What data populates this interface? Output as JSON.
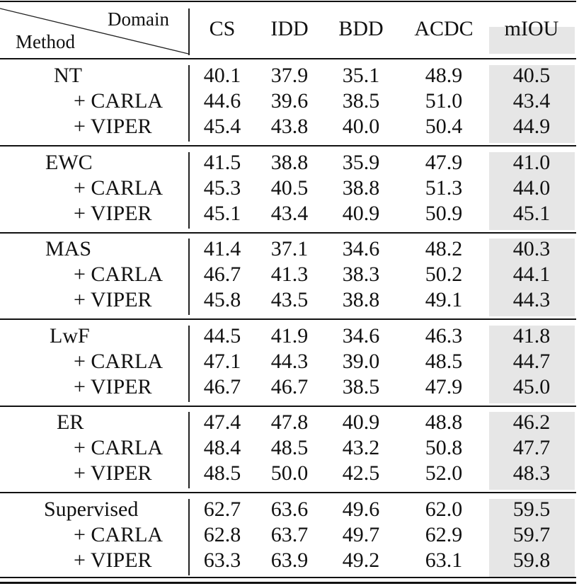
{
  "table": {
    "header": {
      "corner_top": "Domain",
      "corner_bottom": "Method",
      "columns": [
        "CS",
        "IDD",
        "BDD",
        "ACDC",
        "mIOU"
      ]
    },
    "highlight_color": "#e6e6e6",
    "groups": [
      {
        "method": "NT",
        "rows": [
          {
            "label": "NT",
            "values": [
              "40.1",
              "37.9",
              "35.1",
              "48.9",
              "40.5"
            ]
          },
          {
            "label": "+ CARLA",
            "values": [
              "44.6",
              "39.6",
              "38.5",
              "51.0",
              "43.4"
            ]
          },
          {
            "label": "+ VIPER",
            "values": [
              "45.4",
              "43.8",
              "40.0",
              "50.4",
              "44.9"
            ]
          }
        ]
      },
      {
        "method": "EWC",
        "rows": [
          {
            "label": "EWC",
            "values": [
              "41.5",
              "38.8",
              "35.9",
              "47.9",
              "41.0"
            ]
          },
          {
            "label": "+ CARLA",
            "values": [
              "45.3",
              "40.5",
              "38.8",
              "51.3",
              "44.0"
            ]
          },
          {
            "label": "+ VIPER",
            "values": [
              "45.1",
              "43.4",
              "40.9",
              "50.9",
              "45.1"
            ]
          }
        ]
      },
      {
        "method": "MAS",
        "rows": [
          {
            "label": "MAS",
            "values": [
              "41.4",
              "37.1",
              "34.6",
              "48.2",
              "40.3"
            ]
          },
          {
            "label": "+ CARLA",
            "values": [
              "46.7",
              "41.3",
              "38.3",
              "50.2",
              "44.1"
            ]
          },
          {
            "label": "+ VIPER",
            "values": [
              "45.8",
              "43.5",
              "38.8",
              "49.1",
              "44.3"
            ]
          }
        ]
      },
      {
        "method": "LwF",
        "rows": [
          {
            "label": "LwF",
            "values": [
              "44.5",
              "41.9",
              "34.6",
              "46.3",
              "41.8"
            ]
          },
          {
            "label": "+ CARLA",
            "values": [
              "47.1",
              "44.3",
              "39.0",
              "48.5",
              "44.7"
            ]
          },
          {
            "label": "+ VIPER",
            "values": [
              "46.7",
              "46.7",
              "38.5",
              "47.9",
              "45.0"
            ]
          }
        ]
      },
      {
        "method": "ER",
        "rows": [
          {
            "label": "ER",
            "values": [
              "47.4",
              "47.8",
              "40.9",
              "48.8",
              "46.2"
            ]
          },
          {
            "label": "+ CARLA",
            "values": [
              "48.4",
              "48.5",
              "43.2",
              "50.8",
              "47.7"
            ]
          },
          {
            "label": "+ VIPER",
            "values": [
              "48.5",
              "50.0",
              "42.5",
              "52.0",
              "48.3"
            ]
          }
        ]
      },
      {
        "method": "Supervised",
        "rows": [
          {
            "label": "Supervised",
            "values": [
              "62.7",
              "63.6",
              "49.6",
              "62.0",
              "59.5"
            ]
          },
          {
            "label": "+ CARLA",
            "values": [
              "62.8",
              "63.7",
              "49.7",
              "62.9",
              "59.7"
            ]
          },
          {
            "label": "+ VIPER",
            "values": [
              "63.3",
              "63.9",
              "49.2",
              "63.1",
              "59.8"
            ]
          }
        ]
      }
    ]
  }
}
